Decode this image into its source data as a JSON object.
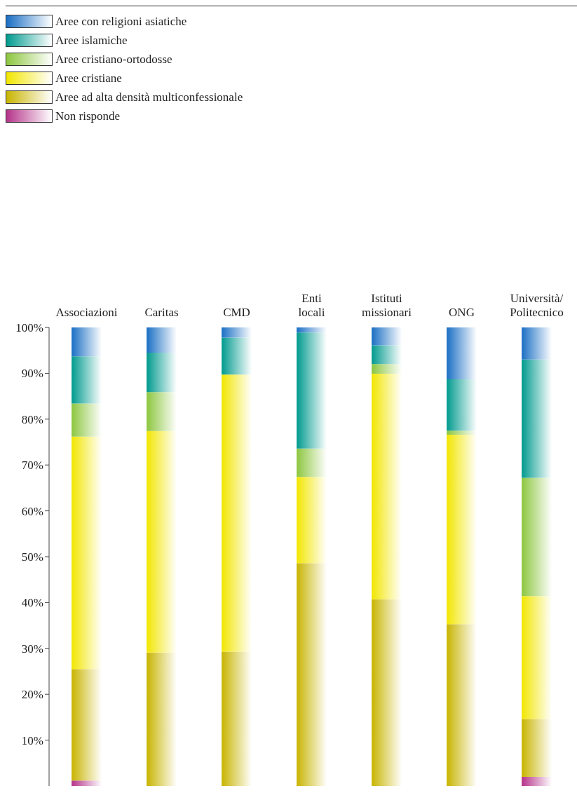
{
  "chart_data": {
    "type": "bar",
    "stacked": true,
    "legend": "top left",
    "categories": [
      "Associazioni",
      "Caritas",
      "CMD",
      "Enti locali",
      "Istituti missionari",
      "ONG",
      "Università/Politecnico"
    ],
    "series": [
      {
        "name": "Non risponde",
        "color": "#b5338a",
        "values": [
          1.2,
          0,
          0,
          0,
          0,
          0,
          2.0
        ]
      },
      {
        "name": "Aree ad alta densità multiconfessionale",
        "color": "#c8b400",
        "values": [
          24.3,
          29.1,
          29.3,
          48.6,
          40.7,
          35.3,
          12.6
        ]
      },
      {
        "name": "Aree cristiane",
        "color": "#f2e600",
        "values": [
          50.7,
          48.3,
          60.4,
          18.8,
          49.2,
          41.3,
          26.8
        ]
      },
      {
        "name": "Aree cristiano-ortodosse",
        "color": "#8cc63f",
        "values": [
          7.2,
          8.5,
          0,
          6.2,
          2.1,
          0.9,
          25.8
        ]
      },
      {
        "name": "Aree islamiche",
        "color": "#009a8e",
        "values": [
          10.3,
          8.6,
          8.1,
          25.3,
          4.1,
          11.2,
          25.8
        ]
      },
      {
        "name": "Aree con religioni asiatiche",
        "color": "#1a6fc4",
        "values": [
          6.3,
          5.5,
          2.2,
          1.1,
          3.9,
          11.3,
          7.0
        ]
      }
    ],
    "ylim": [
      0,
      100
    ],
    "yticks": [
      {
        "value": 10,
        "label": "10%"
      },
      {
        "value": 20,
        "label": "20%"
      },
      {
        "value": 30,
        "label": "30%"
      },
      {
        "value": 40,
        "label": "40%"
      },
      {
        "value": 50,
        "label": "50%"
      },
      {
        "value": 60,
        "label": "60%"
      },
      {
        "value": 70,
        "label": "70%"
      },
      {
        "value": 80,
        "label": "80%"
      },
      {
        "value": 90,
        "label": "90%"
      },
      {
        "value": 100,
        "label": "100%"
      }
    ],
    "grid": false
  }
}
